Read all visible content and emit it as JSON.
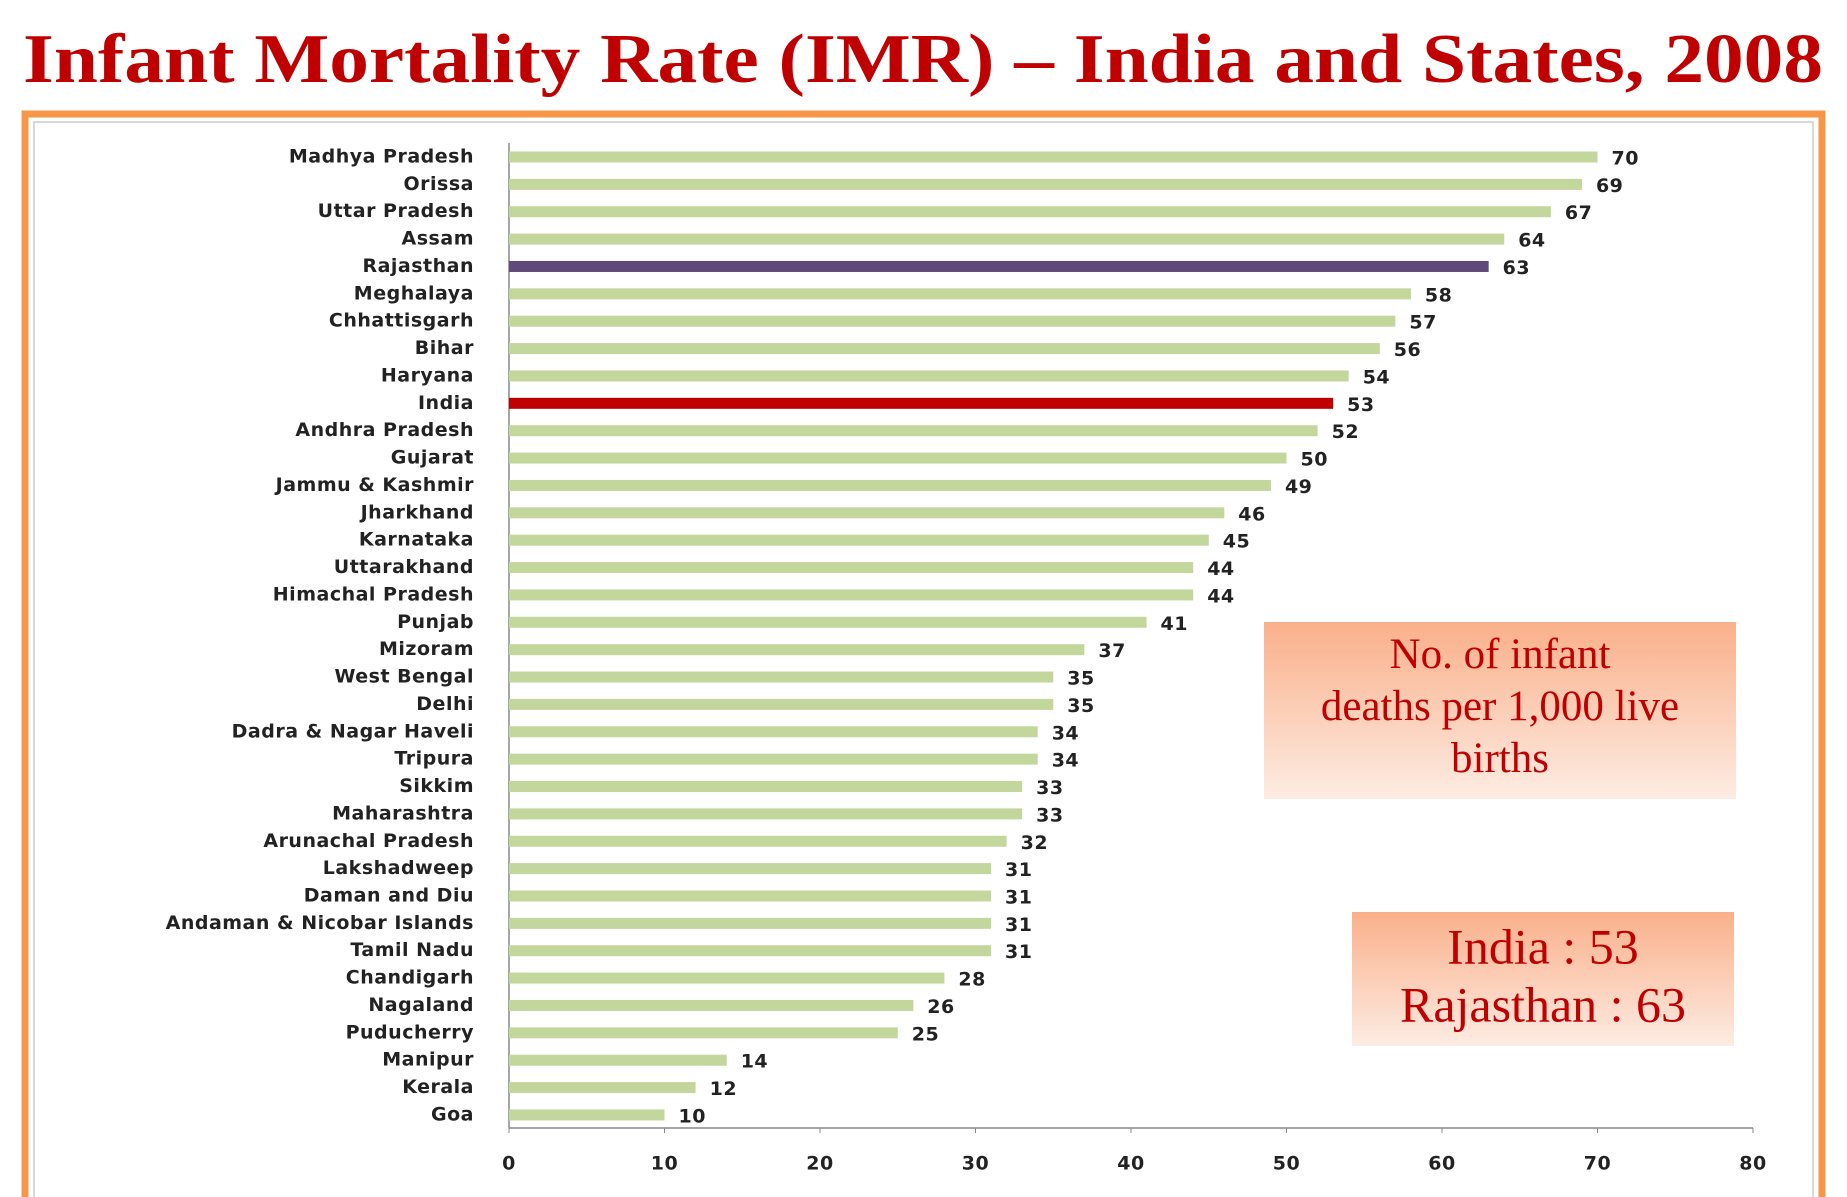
{
  "chart_data": {
    "type": "bar",
    "orientation": "horizontal",
    "title": "Infant Mortality Rate (IMR) – India and States, 2008",
    "categories": [
      "Madhya Pradesh",
      "Orissa",
      "Uttar Pradesh",
      "Assam",
      "Rajasthan",
      "Meghalaya",
      "Chhattisgarh",
      "Bihar",
      "Haryana",
      "India",
      "Andhra Pradesh",
      "Gujarat",
      "Jammu & Kashmir",
      "Jharkhand",
      "Karnataka",
      "Uttarakhand",
      "Himachal Pradesh",
      "Punjab",
      "Mizoram",
      "West Bengal",
      "Delhi",
      "Dadra & Nagar Haveli",
      "Tripura",
      "Sikkim",
      "Maharashtra",
      "Arunachal Pradesh",
      "Lakshadweep",
      "Daman and Diu",
      "Andaman & Nicobar Islands",
      "Tamil Nadu",
      "Chandigarh",
      "Nagaland",
      "Puducherry",
      "Manipur",
      "Kerala",
      "Goa"
    ],
    "values": [
      70,
      69,
      67,
      64,
      63,
      58,
      57,
      56,
      54,
      53,
      52,
      50,
      49,
      46,
      45,
      44,
      44,
      41,
      37,
      35,
      35,
      34,
      34,
      33,
      33,
      32,
      31,
      31,
      31,
      31,
      28,
      26,
      25,
      14,
      12,
      10
    ],
    "colors": [
      "#c3d69b",
      "#c3d69b",
      "#c3d69b",
      "#c3d69b",
      "#604a7b",
      "#c3d69b",
      "#c3d69b",
      "#c3d69b",
      "#c3d69b",
      "#c00000",
      "#c3d69b",
      "#c3d69b",
      "#c3d69b",
      "#c3d69b",
      "#c3d69b",
      "#c3d69b",
      "#c3d69b",
      "#c3d69b",
      "#c3d69b",
      "#c3d69b",
      "#c3d69b",
      "#c3d69b",
      "#c3d69b",
      "#c3d69b",
      "#c3d69b",
      "#c3d69b",
      "#c3d69b",
      "#c3d69b",
      "#c3d69b",
      "#c3d69b",
      "#c3d69b",
      "#c3d69b",
      "#c3d69b",
      "#c3d69b",
      "#c3d69b",
      "#c3d69b"
    ],
    "xlim": [
      0,
      80
    ],
    "xticks": [
      0,
      10,
      20,
      30,
      40,
      50,
      60,
      70,
      80
    ],
    "annotations": [
      [
        "No. of infant",
        "deaths per 1,000 live",
        "births"
      ],
      [
        "India : 53",
        "Rajasthan : 63"
      ]
    ]
  }
}
